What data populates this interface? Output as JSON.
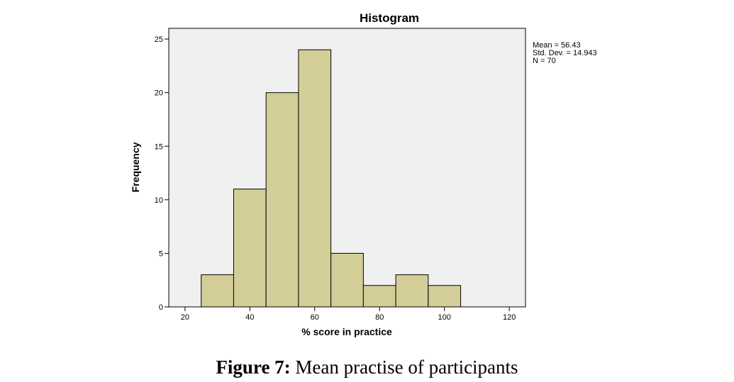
{
  "chart_data": {
    "type": "bar",
    "title": "Histogram",
    "xlabel": "% score in practice",
    "ylabel": "Frequency",
    "bins": [
      {
        "start": 25,
        "end": 35,
        "value": 3
      },
      {
        "start": 35,
        "end": 45,
        "value": 11
      },
      {
        "start": 45,
        "end": 55,
        "value": 20
      },
      {
        "start": 55,
        "end": 65,
        "value": 24
      },
      {
        "start": 65,
        "end": 75,
        "value": 5
      },
      {
        "start": 75,
        "end": 85,
        "value": 2
      },
      {
        "start": 85,
        "end": 95,
        "value": 3
      },
      {
        "start": 95,
        "end": 105,
        "value": 2
      }
    ],
    "xlim": [
      15,
      125
    ],
    "ylim": [
      0,
      26
    ],
    "xticks": [
      20,
      40,
      60,
      80,
      100,
      120
    ],
    "yticks": [
      0,
      5,
      10,
      15,
      20,
      25
    ],
    "grid": false,
    "legend": "none",
    "stats": [
      "Mean = 56.43",
      "Std. Dev. = 14.943",
      "N = 70"
    ],
    "colors": {
      "bar_fill": "#d3ce98",
      "bar_stroke": "#000000",
      "plot_background": "#f0f0f0"
    }
  },
  "caption": {
    "label": "Figure 7:",
    "text": " Mean practise of participants"
  }
}
